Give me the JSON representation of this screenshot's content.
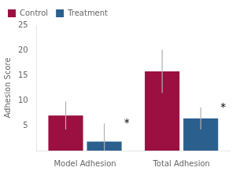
{
  "chart_data": {
    "type": "bar",
    "categories": [
      "Model Adhesion",
      "Total Adhesion"
    ],
    "series": [
      {
        "name": "Control",
        "color": "#9B1040",
        "values": [
          7.0,
          15.8
        ],
        "error_up": [
          2.8,
          4.3
        ],
        "error_down": [
          2.8,
          4.3
        ]
      },
      {
        "name": "Treatment",
        "color": "#2B5F8E",
        "values": [
          1.8,
          6.4
        ],
        "error_up": [
          3.6,
          2.2
        ],
        "error_down": [
          1.8,
          2.2
        ]
      }
    ],
    "ylabel": "Adhesion Score",
    "ylim": [
      0,
      25
    ],
    "yticks": [
      {
        "value": 0,
        "label": ""
      },
      5,
      10,
      15,
      20,
      25
    ],
    "annotations": [
      {
        "text": "*",
        "category": "Model Adhesion",
        "series": "Treatment"
      },
      {
        "text": "*",
        "category": "Total Adhesion",
        "series": "Treatment"
      }
    ],
    "grid": false,
    "legend": "upper left"
  }
}
